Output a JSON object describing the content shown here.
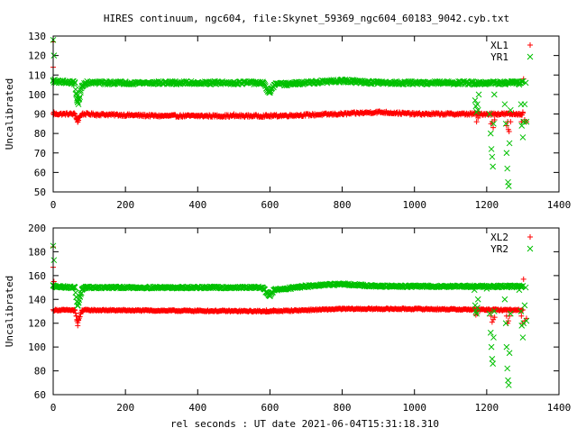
{
  "title": "HIRES continuum, ngc604, file:Skynet_59369_ngc604_60183_9042.cyb.txt",
  "xlabel": "rel seconds : UT date 2021-06-04T15:31:18.310",
  "colors": {
    "xl": "#ff0000",
    "yr": "#00c000"
  },
  "chart_data": [
    {
      "type": "scatter",
      "ylabel": "Uncalibrated",
      "xlim": [
        0,
        1400
      ],
      "ylim": [
        50,
        130
      ],
      "xticks": [
        0,
        200,
        400,
        600,
        800,
        1000,
        1200,
        1400
      ],
      "yticks": [
        50,
        60,
        70,
        80,
        90,
        100,
        110,
        120,
        130
      ],
      "legend": "top-right",
      "series": [
        {
          "name": "XL1",
          "marker": "plus",
          "color": "#ff0000",
          "points": [
            [
              0,
              114
            ],
            [
              0,
              127
            ],
            [
              2,
              91
            ],
            [
              8,
              90
            ],
            [
              30,
              90
            ],
            [
              60,
              90
            ],
            [
              64,
              88
            ],
            [
              66,
              87
            ],
            [
              68,
              86
            ],
            [
              70,
              88
            ],
            [
              74,
              89
            ],
            [
              80,
              90
            ],
            [
              120,
              89
            ],
            [
              200,
              89
            ],
            [
              300,
              89
            ],
            [
              400,
              89
            ],
            [
              500,
              90
            ],
            [
              590,
              89
            ],
            [
              600,
              89
            ],
            [
              610,
              89
            ],
            [
              700,
              90
            ],
            [
              800,
              90
            ],
            [
              900,
              91
            ],
            [
              1000,
              90
            ],
            [
              1100,
              90
            ],
            [
              1168,
              90
            ],
            [
              1172,
              86
            ],
            [
              1176,
              88
            ],
            [
              1180,
              89
            ],
            [
              1200,
              90
            ],
            [
              1212,
              85
            ],
            [
              1215,
              86
            ],
            [
              1218,
              83
            ],
            [
              1222,
              87
            ],
            [
              1230,
              90
            ],
            [
              1255,
              84
            ],
            [
              1258,
              86
            ],
            [
              1260,
              82
            ],
            [
              1262,
              81
            ],
            [
              1266,
              86
            ],
            [
              1270,
              90
            ],
            [
              1290,
              90
            ],
            [
              1296,
              86
            ],
            [
              1300,
              91
            ],
            [
              1302,
              108
            ],
            [
              1305,
              87
            ],
            [
              1310,
              86
            ]
          ],
          "band": [
            [
              0,
              90
            ],
            [
              60,
              90
            ],
            [
              64,
              88
            ],
            [
              68,
              86
            ],
            [
              72,
              88
            ],
            [
              80,
              90
            ],
            [
              300,
              89
            ],
            [
              600,
              89
            ],
            [
              800,
              90
            ],
            [
              900,
              91
            ],
            [
              1000,
              90
            ],
            [
              1300,
              90
            ]
          ]
        },
        {
          "name": "YR1",
          "marker": "cross",
          "color": "#00c000",
          "points": [
            [
              0,
              128
            ],
            [
              0,
              107
            ],
            [
              2,
              120
            ],
            [
              8,
              106
            ],
            [
              30,
              106
            ],
            [
              60,
              106
            ],
            [
              64,
              100
            ],
            [
              66,
              97
            ],
            [
              68,
              96
            ],
            [
              70,
              95
            ],
            [
              72,
              98
            ],
            [
              76,
              102
            ],
            [
              80,
              104
            ],
            [
              90,
              106
            ],
            [
              200,
              106
            ],
            [
              400,
              106
            ],
            [
              580,
              106
            ],
            [
              590,
              103
            ],
            [
              596,
              102
            ],
            [
              600,
              101
            ],
            [
              604,
              103
            ],
            [
              612,
              105
            ],
            [
              700,
              106
            ],
            [
              800,
              107
            ],
            [
              900,
              106
            ],
            [
              1000,
              106
            ],
            [
              1100,
              106
            ],
            [
              1166,
              105
            ],
            [
              1168,
              97
            ],
            [
              1170,
              94
            ],
            [
              1172,
              91
            ],
            [
              1174,
              95
            ],
            [
              1176,
              92
            ],
            [
              1178,
              100
            ],
            [
              1200,
              106
            ],
            [
              1208,
              90
            ],
            [
              1211,
              80
            ],
            [
              1213,
              72
            ],
            [
              1215,
              68
            ],
            [
              1217,
              63
            ],
            [
              1219,
              85
            ],
            [
              1221,
              100
            ],
            [
              1230,
              106
            ],
            [
              1250,
              95
            ],
            [
              1253,
              85
            ],
            [
              1255,
              70
            ],
            [
              1257,
              62
            ],
            [
              1259,
              55
            ],
            [
              1261,
              53
            ],
            [
              1263,
              75
            ],
            [
              1266,
              92
            ],
            [
              1270,
              106
            ],
            [
              1290,
              105
            ],
            [
              1295,
              95
            ],
            [
              1297,
              84
            ],
            [
              1300,
              78
            ],
            [
              1302,
              86
            ],
            [
              1305,
              95
            ],
            [
              1308,
              106
            ],
            [
              1310,
              86
            ]
          ],
          "band": [
            [
              0,
              107
            ],
            [
              60,
              106
            ],
            [
              64,
              100
            ],
            [
              68,
              96
            ],
            [
              72,
              98
            ],
            [
              80,
              104
            ],
            [
              90,
              106
            ],
            [
              580,
              106
            ],
            [
              590,
              103
            ],
            [
              600,
              101
            ],
            [
              612,
              105
            ],
            [
              700,
              106
            ],
            [
              800,
              107
            ],
            [
              900,
              106
            ],
            [
              1300,
              106
            ]
          ]
        }
      ]
    },
    {
      "type": "scatter",
      "ylabel": "Uncalibrated",
      "xlim": [
        0,
        1400
      ],
      "ylim": [
        60,
        200
      ],
      "xticks": [
        0,
        200,
        400,
        600,
        800,
        1000,
        1200,
        1400
      ],
      "yticks": [
        60,
        80,
        100,
        120,
        140,
        160,
        180,
        200
      ],
      "legend": "top-right",
      "series": [
        {
          "name": "XL2",
          "marker": "plus",
          "color": "#ff0000",
          "points": [
            [
              0,
              167
            ],
            [
              0,
              184
            ],
            [
              2,
              155
            ],
            [
              6,
              131
            ],
            [
              30,
              131
            ],
            [
              60,
              131
            ],
            [
              64,
              126
            ],
            [
              66,
              122
            ],
            [
              68,
              118
            ],
            [
              70,
              123
            ],
            [
              76,
              128
            ],
            [
              80,
              131
            ],
            [
              200,
              131
            ],
            [
              400,
              131
            ],
            [
              590,
              131
            ],
            [
              600,
              130
            ],
            [
              610,
              131
            ],
            [
              800,
              132
            ],
            [
              1000,
              132
            ],
            [
              1100,
              132
            ],
            [
              1168,
              131
            ],
            [
              1170,
              127
            ],
            [
              1172,
              130
            ],
            [
              1174,
              128
            ],
            [
              1200,
              131
            ],
            [
              1212,
              126
            ],
            [
              1215,
              121
            ],
            [
              1218,
              123
            ],
            [
              1222,
              125
            ],
            [
              1230,
              131
            ],
            [
              1255,
              126
            ],
            [
              1258,
              120
            ],
            [
              1260,
              122
            ],
            [
              1263,
              126
            ],
            [
              1270,
              131
            ],
            [
              1296,
              126
            ],
            [
              1300,
              120
            ],
            [
              1302,
              157
            ],
            [
              1305,
              122
            ],
            [
              1310,
              124
            ]
          ],
          "band": [
            [
              0,
              131
            ],
            [
              60,
              131
            ],
            [
              64,
              126
            ],
            [
              68,
              120
            ],
            [
              72,
              124
            ],
            [
              80,
              131
            ],
            [
              600,
              130
            ],
            [
              800,
              132
            ],
            [
              1000,
              132
            ],
            [
              1300,
              131
            ]
          ]
        },
        {
          "name": "YR2",
          "marker": "cross",
          "color": "#00c000",
          "points": [
            [
              0,
              185
            ],
            [
              0,
              152
            ],
            [
              2,
              173
            ],
            [
              6,
              151
            ],
            [
              30,
              150
            ],
            [
              60,
              150
            ],
            [
              64,
              142
            ],
            [
              66,
              138
            ],
            [
              68,
              135
            ],
            [
              70,
              137
            ],
            [
              74,
              142
            ],
            [
              80,
              148
            ],
            [
              90,
              150
            ],
            [
              200,
              150
            ],
            [
              400,
              150
            ],
            [
              580,
              150
            ],
            [
              590,
              146
            ],
            [
              596,
              144
            ],
            [
              600,
              143
            ],
            [
              604,
              145
            ],
            [
              612,
              148
            ],
            [
              700,
              151
            ],
            [
              800,
              153
            ],
            [
              900,
              151
            ],
            [
              1000,
              151
            ],
            [
              1100,
              151
            ],
            [
              1166,
              148
            ],
            [
              1168,
              135
            ],
            [
              1170,
              130
            ],
            [
              1172,
              128
            ],
            [
              1174,
              133
            ],
            [
              1176,
              140
            ],
            [
              1200,
              149
            ],
            [
              1208,
              128
            ],
            [
              1211,
              112
            ],
            [
              1213,
              100
            ],
            [
              1215,
              90
            ],
            [
              1217,
              86
            ],
            [
              1219,
              108
            ],
            [
              1221,
              130
            ],
            [
              1230,
              150
            ],
            [
              1250,
              140
            ],
            [
              1253,
              120
            ],
            [
              1255,
              100
            ],
            [
              1257,
              82
            ],
            [
              1259,
              72
            ],
            [
              1261,
              68
            ],
            [
              1263,
              95
            ],
            [
              1266,
              128
            ],
            [
              1270,
              150
            ],
            [
              1290,
              148
            ],
            [
              1295,
              130
            ],
            [
              1297,
              118
            ],
            [
              1300,
              108
            ],
            [
              1302,
              120
            ],
            [
              1305,
              135
            ],
            [
              1308,
              150
            ],
            [
              1310,
              122
            ]
          ],
          "band": [
            [
              0,
              151
            ],
            [
              60,
              150
            ],
            [
              64,
              142
            ],
            [
              68,
              135
            ],
            [
              72,
              140
            ],
            [
              80,
              148
            ],
            [
              90,
              150
            ],
            [
              580,
              150
            ],
            [
              590,
              146
            ],
            [
              600,
              143
            ],
            [
              612,
              148
            ],
            [
              700,
              151
            ],
            [
              800,
              153
            ],
            [
              900,
              151
            ],
            [
              1300,
              151
            ]
          ]
        }
      ]
    }
  ]
}
